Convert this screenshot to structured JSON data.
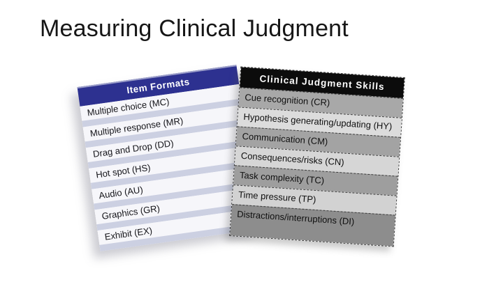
{
  "slide": {
    "title": "Measuring Clinical Judgment",
    "background": "#ffffff"
  },
  "item_formats": {
    "header": "Item Formats",
    "header_bg": "#2d3190",
    "header_text_color": "#ffffff",
    "row_bg": "#f6f6fa",
    "band_color": "#ccd0e2",
    "rows": [
      "Multiple choice (MC)",
      "Multiple response (MR)",
      "Drag and Drop (DD)",
      "Hot spot (HS)",
      "Audio (AU)",
      "Graphics (GR)",
      "Exhibit (EX)"
    ]
  },
  "cj_skills": {
    "header": "Clinical Judgment Skills",
    "header_bg": "#0c0c0c",
    "header_text_color": "#ffffff",
    "rows": [
      {
        "label": "Cue recognition (CR)",
        "bg": "#a8a8a8"
      },
      {
        "label": "Hypothesis generating/updating (HY)",
        "bg": "#dcdcdc"
      },
      {
        "label": "Communication (CM)",
        "bg": "#a3a3a3"
      },
      {
        "label": "Consequences/risks (CN)",
        "bg": "#d6d6d6"
      },
      {
        "label": "Task complexity (TC)",
        "bg": "#9e9e9e"
      },
      {
        "label": "Time pressure (TP)",
        "bg": "#d2d2d2"
      },
      {
        "label": "Distractions/interruptions (DI)",
        "bg": "#8d8d8d"
      }
    ]
  }
}
